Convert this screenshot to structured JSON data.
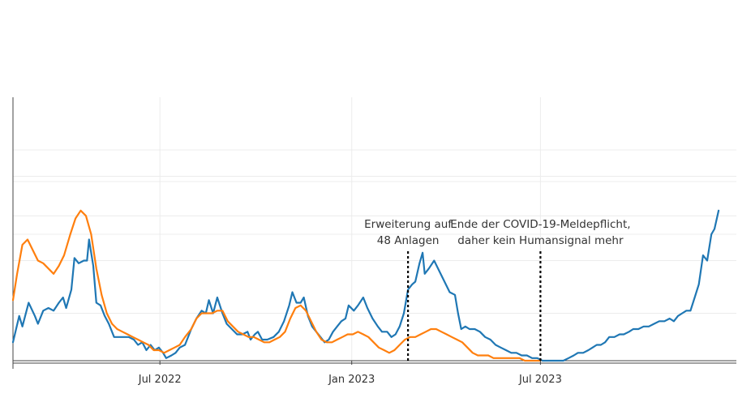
{
  "chart_data": {
    "type": "line",
    "title": "",
    "xlabel": "",
    "ylabel": "",
    "xlim": [
      "2022-02-10",
      "2024-01-05"
    ],
    "ylim": [
      0,
      100
    ],
    "grid": true,
    "legend": "none",
    "x_ticks": [
      {
        "date": "2022-07-01",
        "label": "Jul 2022"
      },
      {
        "date": "2023-01-01",
        "label": "Jan 2023"
      },
      {
        "date": "2023-07-01",
        "label": "Jul 2023"
      }
    ],
    "y_gridlines": [
      0,
      18,
      38,
      48,
      55,
      68,
      70,
      80
    ],
    "series": [
      {
        "name": "",
        "color": "#1f77b4",
        "points": [
          [
            "2022-02-10",
            7
          ],
          [
            "2022-02-16",
            17
          ],
          [
            "2022-02-19",
            13
          ],
          [
            "2022-02-25",
            22
          ],
          [
            "2022-03-03",
            17
          ],
          [
            "2022-03-06",
            14
          ],
          [
            "2022-03-11",
            19
          ],
          [
            "2022-03-16",
            20
          ],
          [
            "2022-03-21",
            19
          ],
          [
            "2022-03-26",
            22
          ],
          [
            "2022-03-30",
            24
          ],
          [
            "2022-04-02",
            20
          ],
          [
            "2022-04-07",
            27
          ],
          [
            "2022-04-10",
            39
          ],
          [
            "2022-04-14",
            37
          ],
          [
            "2022-04-19",
            38
          ],
          [
            "2022-04-22",
            38
          ],
          [
            "2022-04-24",
            46
          ],
          [
            "2022-04-28",
            36
          ],
          [
            "2022-05-01",
            22
          ],
          [
            "2022-05-05",
            21
          ],
          [
            "2022-05-09",
            17
          ],
          [
            "2022-05-13",
            14
          ],
          [
            "2022-05-18",
            9
          ],
          [
            "2022-05-25",
            9
          ],
          [
            "2022-06-01",
            9
          ],
          [
            "2022-06-06",
            8
          ],
          [
            "2022-06-10",
            6
          ],
          [
            "2022-06-14",
            7
          ],
          [
            "2022-06-18",
            4
          ],
          [
            "2022-06-22",
            6
          ],
          [
            "2022-06-26",
            4
          ],
          [
            "2022-06-30",
            5
          ],
          [
            "2022-07-04",
            3
          ],
          [
            "2022-07-07",
            1
          ],
          [
            "2022-07-12",
            2
          ],
          [
            "2022-07-16",
            3
          ],
          [
            "2022-07-20",
            5
          ],
          [
            "2022-07-25",
            6
          ],
          [
            "2022-07-31",
            12
          ],
          [
            "2022-08-05",
            16
          ],
          [
            "2022-08-10",
            19
          ],
          [
            "2022-08-14",
            18
          ],
          [
            "2022-08-17",
            23
          ],
          [
            "2022-08-21",
            18
          ],
          [
            "2022-08-25",
            24
          ],
          [
            "2022-08-30",
            18
          ],
          [
            "2022-09-03",
            14
          ],
          [
            "2022-09-08",
            12
          ],
          [
            "2022-09-13",
            10
          ],
          [
            "2022-09-18",
            10
          ],
          [
            "2022-09-23",
            11
          ],
          [
            "2022-09-26",
            8
          ],
          [
            "2022-09-30",
            10
          ],
          [
            "2022-10-03",
            11
          ],
          [
            "2022-10-07",
            8
          ],
          [
            "2022-10-12",
            8
          ],
          [
            "2022-10-18",
            9
          ],
          [
            "2022-10-23",
            11
          ],
          [
            "2022-10-28",
            15
          ],
          [
            "2022-11-02",
            21
          ],
          [
            "2022-11-05",
            26
          ],
          [
            "2022-11-09",
            22
          ],
          [
            "2022-11-13",
            22
          ],
          [
            "2022-11-16",
            24
          ],
          [
            "2022-11-20",
            17
          ],
          [
            "2022-11-24",
            13
          ],
          [
            "2022-11-28",
            11
          ],
          [
            "2022-12-02",
            9
          ],
          [
            "2022-12-06",
            7
          ],
          [
            "2022-12-10",
            8
          ],
          [
            "2022-12-14",
            11
          ],
          [
            "2022-12-18",
            13
          ],
          [
            "2022-12-22",
            15
          ],
          [
            "2022-12-26",
            16
          ],
          [
            "2022-12-29",
            21
          ],
          [
            "2023-01-03",
            19
          ],
          [
            "2023-01-07",
            21
          ],
          [
            "2023-01-12",
            24
          ],
          [
            "2023-01-16",
            20
          ],
          [
            "2023-01-21",
            16
          ],
          [
            "2023-01-26",
            13
          ],
          [
            "2023-01-30",
            11
          ],
          [
            "2023-02-04",
            11
          ],
          [
            "2023-02-08",
            9
          ],
          [
            "2023-02-12",
            10
          ],
          [
            "2023-02-16",
            13
          ],
          [
            "2023-02-20",
            18
          ],
          [
            "2023-02-24",
            27
          ],
          [
            "2023-02-28",
            29
          ],
          [
            "2023-03-03",
            30
          ],
          [
            "2023-03-07",
            37
          ],
          [
            "2023-03-10",
            41
          ],
          [
            "2023-03-12",
            33
          ],
          [
            "2023-03-16",
            35
          ],
          [
            "2023-03-21",
            38
          ],
          [
            "2023-03-26",
            34
          ],
          [
            "2023-03-31",
            30
          ],
          [
            "2023-04-05",
            26
          ],
          [
            "2023-04-10",
            25
          ],
          [
            "2023-04-13",
            18
          ],
          [
            "2023-04-16",
            12
          ],
          [
            "2023-04-20",
            13
          ],
          [
            "2023-04-24",
            12
          ],
          [
            "2023-04-29",
            12
          ],
          [
            "2023-05-04",
            11
          ],
          [
            "2023-05-09",
            9
          ],
          [
            "2023-05-14",
            8
          ],
          [
            "2023-05-19",
            6
          ],
          [
            "2023-05-24",
            5
          ],
          [
            "2023-05-29",
            4
          ],
          [
            "2023-06-03",
            3
          ],
          [
            "2023-06-08",
            3
          ],
          [
            "2023-06-13",
            2
          ],
          [
            "2023-06-18",
            2
          ],
          [
            "2023-06-23",
            1
          ],
          [
            "2023-06-28",
            1
          ],
          [
            "2023-07-03",
            0
          ],
          [
            "2023-07-08",
            0
          ],
          [
            "2023-07-13",
            0
          ],
          [
            "2023-07-18",
            0
          ],
          [
            "2023-07-23",
            0
          ],
          [
            "2023-07-28",
            1
          ],
          [
            "2023-08-02",
            2
          ],
          [
            "2023-08-06",
            3
          ],
          [
            "2023-08-11",
            3
          ],
          [
            "2023-08-16",
            4
          ],
          [
            "2023-08-20",
            5
          ],
          [
            "2023-08-24",
            6
          ],
          [
            "2023-08-28",
            6
          ],
          [
            "2023-09-01",
            7
          ],
          [
            "2023-09-05",
            9
          ],
          [
            "2023-09-10",
            9
          ],
          [
            "2023-09-15",
            10
          ],
          [
            "2023-09-19",
            10
          ],
          [
            "2023-09-24",
            11
          ],
          [
            "2023-09-28",
            12
          ],
          [
            "2023-10-03",
            12
          ],
          [
            "2023-10-08",
            13
          ],
          [
            "2023-10-13",
            13
          ],
          [
            "2023-10-18",
            14
          ],
          [
            "2023-10-23",
            15
          ],
          [
            "2023-10-28",
            15
          ],
          [
            "2023-11-02",
            16
          ],
          [
            "2023-11-06",
            15
          ],
          [
            "2023-11-10",
            17
          ],
          [
            "2023-11-14",
            18
          ],
          [
            "2023-11-18",
            19
          ],
          [
            "2023-11-22",
            19
          ],
          [
            "2023-11-26",
            24
          ],
          [
            "2023-11-30",
            29
          ],
          [
            "2023-12-04",
            40
          ],
          [
            "2023-12-08",
            38
          ],
          [
            "2023-12-12",
            48
          ],
          [
            "2023-12-15",
            50
          ],
          [
            "2023-12-19",
            57
          ]
        ]
      },
      {
        "name": "",
        "color": "#ff7f0e",
        "points": [
          [
            "2022-02-10",
            23
          ],
          [
            "2022-02-14",
            33
          ],
          [
            "2022-02-19",
            44
          ],
          [
            "2022-02-24",
            46
          ],
          [
            "2022-03-01",
            42
          ],
          [
            "2022-03-06",
            38
          ],
          [
            "2022-03-11",
            37
          ],
          [
            "2022-03-16",
            35
          ],
          [
            "2022-03-21",
            33
          ],
          [
            "2022-03-26",
            36
          ],
          [
            "2022-03-31",
            40
          ],
          [
            "2022-04-06",
            48
          ],
          [
            "2022-04-11",
            54
          ],
          [
            "2022-04-16",
            57
          ],
          [
            "2022-04-21",
            55
          ],
          [
            "2022-04-26",
            48
          ],
          [
            "2022-05-01",
            35
          ],
          [
            "2022-05-06",
            25
          ],
          [
            "2022-05-11",
            18
          ],
          [
            "2022-05-16",
            14
          ],
          [
            "2022-05-21",
            12
          ],
          [
            "2022-05-26",
            11
          ],
          [
            "2022-05-31",
            10
          ],
          [
            "2022-06-05",
            9
          ],
          [
            "2022-06-10",
            8
          ],
          [
            "2022-06-15",
            7
          ],
          [
            "2022-06-20",
            6
          ],
          [
            "2022-06-25",
            4
          ],
          [
            "2022-06-30",
            4
          ],
          [
            "2022-07-05",
            3
          ],
          [
            "2022-07-10",
            4
          ],
          [
            "2022-07-15",
            5
          ],
          [
            "2022-07-20",
            6
          ],
          [
            "2022-07-25",
            9
          ],
          [
            "2022-07-31",
            12
          ],
          [
            "2022-08-05",
            16
          ],
          [
            "2022-08-10",
            18
          ],
          [
            "2022-08-15",
            18
          ],
          [
            "2022-08-20",
            18
          ],
          [
            "2022-08-25",
            19
          ],
          [
            "2022-08-30",
            19
          ],
          [
            "2022-09-04",
            15
          ],
          [
            "2022-09-09",
            13
          ],
          [
            "2022-09-14",
            11
          ],
          [
            "2022-09-19",
            10
          ],
          [
            "2022-09-24",
            9
          ],
          [
            "2022-09-29",
            9
          ],
          [
            "2022-10-04",
            8
          ],
          [
            "2022-10-09",
            7
          ],
          [
            "2022-10-14",
            7
          ],
          [
            "2022-10-19",
            8
          ],
          [
            "2022-10-24",
            9
          ],
          [
            "2022-10-29",
            11
          ],
          [
            "2022-11-03",
            16
          ],
          [
            "2022-11-08",
            20
          ],
          [
            "2022-11-13",
            21
          ],
          [
            "2022-11-18",
            19
          ],
          [
            "2022-11-23",
            15
          ],
          [
            "2022-11-28",
            11
          ],
          [
            "2022-12-03",
            8
          ],
          [
            "2022-12-08",
            7
          ],
          [
            "2022-12-13",
            7
          ],
          [
            "2022-12-18",
            8
          ],
          [
            "2022-12-23",
            9
          ],
          [
            "2022-12-28",
            10
          ],
          [
            "2023-01-02",
            10
          ],
          [
            "2023-01-07",
            11
          ],
          [
            "2023-01-12",
            10
          ],
          [
            "2023-01-17",
            9
          ],
          [
            "2023-01-22",
            7
          ],
          [
            "2023-01-27",
            5
          ],
          [
            "2023-02-01",
            4
          ],
          [
            "2023-02-06",
            3
          ],
          [
            "2023-02-11",
            4
          ],
          [
            "2023-02-16",
            6
          ],
          [
            "2023-02-21",
            8
          ],
          [
            "2023-02-26",
            9
          ],
          [
            "2023-03-03",
            9
          ],
          [
            "2023-03-08",
            10
          ],
          [
            "2023-03-13",
            11
          ],
          [
            "2023-03-18",
            12
          ],
          [
            "2023-03-23",
            12
          ],
          [
            "2023-03-28",
            11
          ],
          [
            "2023-04-02",
            10
          ],
          [
            "2023-04-07",
            9
          ],
          [
            "2023-04-12",
            8
          ],
          [
            "2023-04-17",
            7
          ],
          [
            "2023-04-22",
            5
          ],
          [
            "2023-04-27",
            3
          ],
          [
            "2023-05-02",
            2
          ],
          [
            "2023-05-07",
            2
          ],
          [
            "2023-05-12",
            2
          ],
          [
            "2023-05-17",
            1
          ],
          [
            "2023-05-22",
            1
          ],
          [
            "2023-05-27",
            1
          ],
          [
            "2023-06-01",
            1
          ],
          [
            "2023-06-06",
            1
          ],
          [
            "2023-06-11",
            1
          ],
          [
            "2023-06-16",
            0
          ],
          [
            "2023-06-21",
            0
          ],
          [
            "2023-06-26",
            0
          ],
          [
            "2023-07-01",
            0
          ]
        ]
      }
    ],
    "annotations": [
      {
        "date": "2023-02-24",
        "lines": [
          "Erweiterung auf",
          "48 Anlagen"
        ]
      },
      {
        "date": "2023-07-01",
        "lines": [
          "Ende der COVID-19-Meldepflicht,",
          "daher kein Humansignal mehr"
        ]
      }
    ]
  }
}
